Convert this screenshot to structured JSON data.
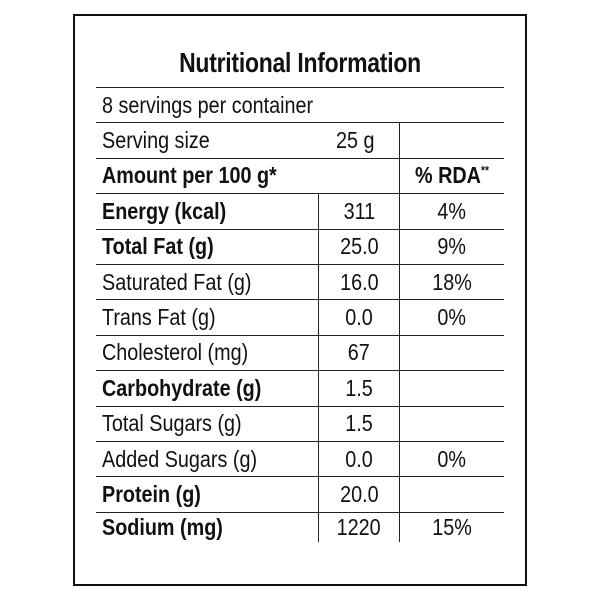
{
  "title": "Nutritional Information",
  "servings": "8 servings per container",
  "serving_size": {
    "label": "Serving size",
    "value": "25 g"
  },
  "amount_header": {
    "label": "Amount per 100 g*",
    "rda_label": "% RDA",
    "rda_mark": "**"
  },
  "rows": [
    {
      "name": "Energy (kcal)",
      "value": "311",
      "rda": "4%",
      "bold": true
    },
    {
      "name": "Total Fat (g)",
      "value": "25.0",
      "rda": "9%",
      "bold": true
    },
    {
      "name": "Saturated Fat (g)",
      "value": "16.0",
      "rda": "18%",
      "bold": false
    },
    {
      "name": "Trans Fat (g)",
      "value": "0.0",
      "rda": "0%",
      "bold": false
    },
    {
      "name": "Cholesterol (mg)",
      "value": "67",
      "rda": "",
      "bold": false
    },
    {
      "name": "Carbohydrate (g)",
      "value": "1.5",
      "rda": "",
      "bold": true
    },
    {
      "name": "Total Sugars (g)",
      "value": "1.5",
      "rda": "",
      "bold": false
    },
    {
      "name": "Added Sugars (g)",
      "value": "0.0",
      "rda": "0%",
      "bold": false
    },
    {
      "name": "Protein (g)",
      "value": "20.0",
      "rda": "",
      "bold": true
    },
    {
      "name": "Sodium (mg)",
      "value": "1220",
      "rda": "15%",
      "bold": true
    }
  ]
}
